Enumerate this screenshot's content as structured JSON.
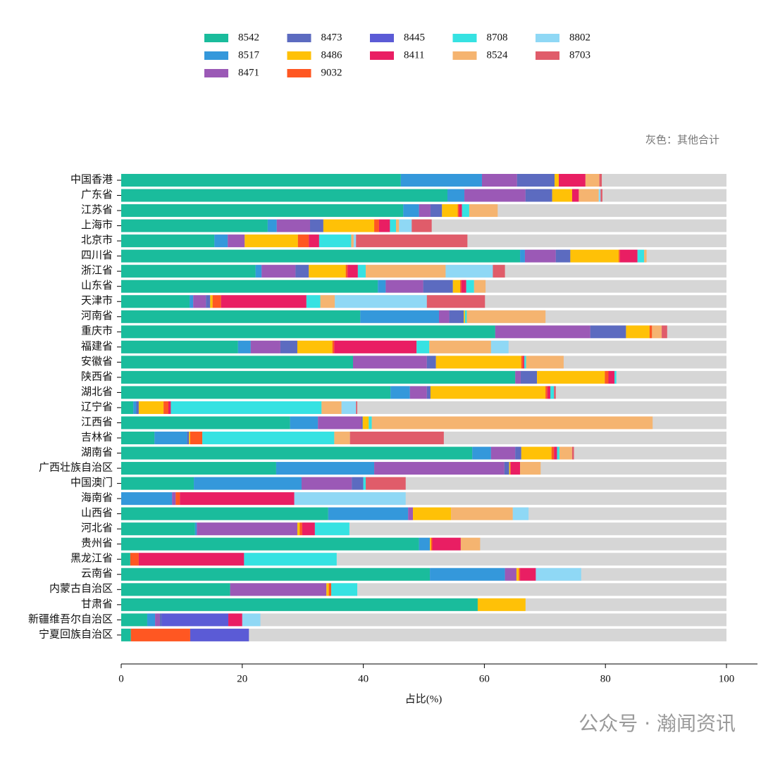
{
  "chart_data": {
    "type": "stacked-barh",
    "xlabel": "占比(%)",
    "annotation": "灰色：其他合计",
    "watermark": "公众号 · 瀚闻资讯",
    "xlim": [
      0,
      100
    ],
    "xticks": [
      0,
      20,
      40,
      60,
      80,
      100
    ],
    "other_color": "#d6d6d6",
    "categories": [
      "中国香港",
      "广东省",
      "江苏省",
      "上海市",
      "北京市",
      "四川省",
      "浙江省",
      "山东省",
      "天津市",
      "河南省",
      "重庆市",
      "福建省",
      "安徽省",
      "陕西省",
      "湖北省",
      "辽宁省",
      "江西省",
      "吉林省",
      "湖南省",
      "广西壮族自治区",
      "中国澳门",
      "海南省",
      "山西省",
      "河北省",
      "贵州省",
      "黑龙江省",
      "云南省",
      "内蒙古自治区",
      "甘肃省",
      "新疆维吾尔自治区",
      "宁夏回族自治区"
    ],
    "series": [
      {
        "name": "8542",
        "color": "#1abc9c",
        "values": [
          46.2,
          53.9,
          46.6,
          24.2,
          15.4,
          65.9,
          22.2,
          42.4,
          11.3,
          39.5,
          61.8,
          19.3,
          38.3,
          65.1,
          44.5,
          2.0,
          27.9,
          5.5,
          58.0,
          25.6,
          12.0,
          0,
          34.2,
          12.2,
          49.2,
          1.5,
          51.0,
          18.0,
          58.9,
          4.3,
          1.6
        ]
      },
      {
        "name": "8517",
        "color": "#3498db",
        "values": [
          13.4,
          2.8,
          2.6,
          1.5,
          2.2,
          0.8,
          1.0,
          1.3,
          0.6,
          13.0,
          0,
          2.1,
          0,
          0,
          3.2,
          0.5,
          4.6,
          5.4,
          3.1,
          16.2,
          17.8,
          8.4,
          13.2,
          0.3,
          1.8,
          0,
          12.4,
          0,
          0,
          1.3,
          0
        ]
      },
      {
        "name": "8471",
        "color": "#9b59b6",
        "values": [
          5.8,
          10.1,
          1.9,
          5.5,
          2.8,
          5.1,
          5.6,
          6.2,
          2.1,
          1.7,
          15.7,
          4.9,
          12.2,
          0.9,
          2.8,
          0,
          7.2,
          0,
          4.0,
          21.5,
          8.3,
          0.6,
          0.8,
          16.6,
          0,
          0,
          1.9,
          15.9,
          0,
          0.8,
          0
        ]
      },
      {
        "name": "8473",
        "color": "#5c6bc0",
        "values": [
          6.2,
          4.4,
          1.9,
          2.2,
          0,
          2.4,
          2.2,
          4.9,
          0.7,
          2.4,
          5.9,
          2.8,
          1.5,
          2.7,
          0.6,
          0.4,
          0.2,
          0.3,
          1.0,
          0.8,
          1.9,
          0,
          0,
          0,
          0,
          0,
          0,
          0,
          0,
          0.3,
          0
        ]
      },
      {
        "name": "8486",
        "color": "#ffc107",
        "values": [
          0.7,
          3.3,
          2.6,
          8.4,
          8.8,
          8.0,
          6.1,
          1.2,
          0.4,
          0.2,
          3.9,
          5.8,
          14.1,
          11.2,
          19.0,
          4.1,
          1.0,
          0.2,
          5.0,
          0.2,
          0,
          0,
          6.3,
          0.4,
          0.2,
          0,
          0.4,
          0.4,
          7.9,
          0,
          0
        ]
      },
      {
        "name": "9032",
        "color": "#ff5722",
        "values": [
          0,
          0,
          0.2,
          0.8,
          1.8,
          0.2,
          0.3,
          0.2,
          1.4,
          0,
          0.4,
          0.3,
          0.3,
          0.6,
          0.3,
          0.8,
          0,
          2.0,
          0.4,
          0,
          0,
          0.7,
          0,
          0.4,
          0.2,
          1.4,
          0.2,
          0.4,
          0,
          0,
          9.8
        ]
      },
      {
        "name": "8445",
        "color": "#5b5bd6",
        "values": [
          0,
          0,
          0,
          0,
          0,
          0,
          0,
          0,
          0,
          0,
          0,
          0,
          0,
          0,
          0,
          0,
          0,
          0,
          0,
          0,
          0,
          0,
          0,
          0,
          0,
          0,
          0,
          0,
          0,
          11.0,
          9.7
        ]
      },
      {
        "name": "8411",
        "color": "#e91e63",
        "values": [
          4.4,
          1.1,
          0.5,
          1.8,
          1.7,
          2.9,
          1.7,
          0.8,
          14.1,
          0,
          0,
          13.6,
          0.2,
          1.0,
          0.5,
          0.4,
          0,
          0,
          0.5,
          1.6,
          0,
          18.9,
          0,
          2.1,
          4.7,
          17.4,
          2.6,
          0,
          0,
          2.3,
          0
        ]
      },
      {
        "name": "8708",
        "color": "#36e2e2",
        "values": [
          0,
          0,
          1.2,
          1.0,
          5.3,
          1.1,
          1.3,
          1.3,
          2.3,
          0.3,
          0,
          2.1,
          0.3,
          0.3,
          0.6,
          24.9,
          0.5,
          21.8,
          0.4,
          0,
          0.4,
          0,
          0,
          5.7,
          0,
          15.3,
          0,
          4.3,
          0,
          0,
          0
        ]
      },
      {
        "name": "8524",
        "color": "#f5b470",
        "values": [
          2.3,
          3.3,
          4.7,
          0.5,
          0.4,
          0.4,
          13.2,
          1.9,
          2.4,
          13.0,
          1.6,
          10.2,
          6.2,
          0,
          0,
          3.3,
          46.4,
          2.6,
          2.1,
          3.4,
          0,
          0,
          10.2,
          0,
          3.2,
          0,
          0,
          0,
          0,
          0,
          0
        ]
      },
      {
        "name": "8802",
        "color": "#8fd8f5",
        "values": [
          0,
          0.3,
          0,
          2.1,
          0.4,
          0,
          7.8,
          0,
          15.2,
          0,
          0,
          2.9,
          0,
          0,
          0,
          2.4,
          0,
          0,
          0,
          0,
          0,
          18.4,
          2.6,
          0,
          0,
          0,
          7.5,
          0,
          0,
          3.0,
          0
        ]
      },
      {
        "name": "8703",
        "color": "#e05c6a",
        "values": [
          0.4,
          0.3,
          0,
          3.3,
          18.4,
          0,
          2.0,
          0,
          9.6,
          0,
          0.9,
          0,
          0,
          0,
          0.3,
          0.2,
          0,
          15.5,
          0.3,
          0,
          6.6,
          0,
          0,
          0,
          0,
          0,
          0,
          0,
          0,
          0,
          0
        ]
      }
    ]
  }
}
